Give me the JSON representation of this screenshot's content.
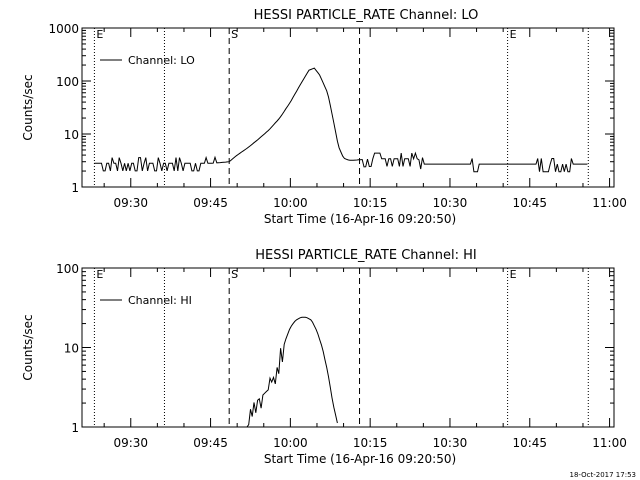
{
  "footer": {
    "timestamp": "18-Oct-2017 17:53"
  },
  "chart_data": [
    {
      "type": "line",
      "title": "HESSI PARTICLE_RATE Channel: LO",
      "xlabel": "Start Time (16-Apr-16 09:20:50)",
      "ylabel": "Counts/sec",
      "y_scale": "log",
      "ylim": [
        1,
        1000
      ],
      "xlim": [
        "09:20:50",
        "11:00:50"
      ],
      "x_ticks": [
        "09:30",
        "09:45",
        "10:00",
        "10:15",
        "10:30",
        "10:45",
        "11:00"
      ],
      "y_ticks": [
        "1",
        "10",
        "100",
        "1000"
      ],
      "legend": {
        "position": "top-left",
        "entries": [
          "Channel: LO"
        ]
      },
      "markers": [
        {
          "label": "E",
          "time": "09:23:10",
          "style": "dotted"
        },
        {
          "label": "",
          "time": "09:36:20",
          "style": "dotted"
        },
        {
          "label": "S",
          "time": "09:48:30",
          "style": "dashed"
        },
        {
          "label": "",
          "time": "10:13:00",
          "style": "dashed"
        },
        {
          "label": "E",
          "time": "10:40:50",
          "style": "dotted"
        },
        {
          "label": "",
          "time": "10:56:00",
          "style": "dotted"
        }
      ],
      "series": [
        {
          "name": "Channel: LO",
          "x": [
            "09:23:10",
            "09:26:00",
            "09:30:00",
            "09:35:00",
            "09:40:00",
            "09:45:00",
            "09:47:00",
            "09:48:30",
            "09:50:00",
            "09:52:00",
            "09:54:00",
            "09:56:00",
            "09:58:00",
            "10:00:00",
            "10:02:00",
            "10:03:30",
            "10:04:30",
            "10:05:30",
            "10:07:00",
            "10:08:00",
            "10:09:00",
            "10:10:00",
            "10:11:00",
            "10:12:00",
            "10:15:00",
            "10:20:00",
            "10:24:00",
            "10:25:00",
            "10:30:00",
            "10:35:00",
            "10:40:00",
            "10:45:00",
            "10:50:00",
            "10:55:00",
            "10:56:00"
          ],
          "y": [
            2.8,
            2.8,
            2.8,
            2.8,
            2.8,
            2.8,
            2.9,
            3.0,
            4.0,
            5.5,
            8.0,
            12,
            20,
            40,
            90,
            160,
            175,
            130,
            60,
            20,
            6,
            3.5,
            3.2,
            3.2,
            3.4,
            3.4,
            3.4,
            2.7,
            2.7,
            2.7,
            2.7,
            2.7,
            2.7,
            2.7,
            2.7
          ],
          "noise_ranges": [
            [
              "09:24:00",
              "09:46:00"
            ],
            [
              "10:13:00",
              "10:25:00"
            ],
            [
              "10:34:00",
              "10:36:00"
            ],
            [
              "10:46:00",
              "10:53:00"
            ]
          ]
        }
      ]
    },
    {
      "type": "line",
      "title": "HESSI PARTICLE_RATE Channel: HI",
      "xlabel": "Start Time (16-Apr-16 09:20:50)",
      "ylabel": "Counts/sec",
      "y_scale": "log",
      "ylim": [
        1,
        100
      ],
      "xlim": [
        "09:20:50",
        "11:00:50"
      ],
      "x_ticks": [
        "09:30",
        "09:45",
        "10:00",
        "10:15",
        "10:30",
        "10:45",
        "11:00"
      ],
      "y_ticks": [
        "1",
        "10",
        "100"
      ],
      "legend": {
        "position": "top-left",
        "entries": [
          "Channel: HI"
        ]
      },
      "markers": [
        {
          "label": "E",
          "time": "09:23:10",
          "style": "dotted"
        },
        {
          "label": "",
          "time": "09:36:20",
          "style": "dotted"
        },
        {
          "label": "S",
          "time": "09:48:30",
          "style": "dashed"
        },
        {
          "label": "",
          "time": "10:13:00",
          "style": "dashed"
        },
        {
          "label": "E",
          "time": "10:40:50",
          "style": "dotted"
        },
        {
          "label": "",
          "time": "10:56:00",
          "style": "dotted"
        }
      ],
      "series": [
        {
          "name": "Channel: HI",
          "x": [
            "09:51:30",
            "09:52:00",
            "09:53:00",
            "09:54:00",
            "09:55:00",
            "09:56:00",
            "09:57:00",
            "09:58:00",
            "09:59:00",
            "10:00:00",
            "10:01:00",
            "10:02:00",
            "10:03:00",
            "10:04:00",
            "10:05:00",
            "10:06:00",
            "10:07:00",
            "10:08:00",
            "10:09:00"
          ],
          "y": [
            1.0,
            1.4,
            2.0,
            2.2,
            2.6,
            3.0,
            4.5,
            7.0,
            12,
            18,
            22,
            24,
            24,
            22,
            16,
            10,
            5,
            2,
            1.0
          ],
          "noise_ranges": [
            [
              "09:51:30",
              "09:58:30"
            ]
          ]
        }
      ]
    }
  ]
}
